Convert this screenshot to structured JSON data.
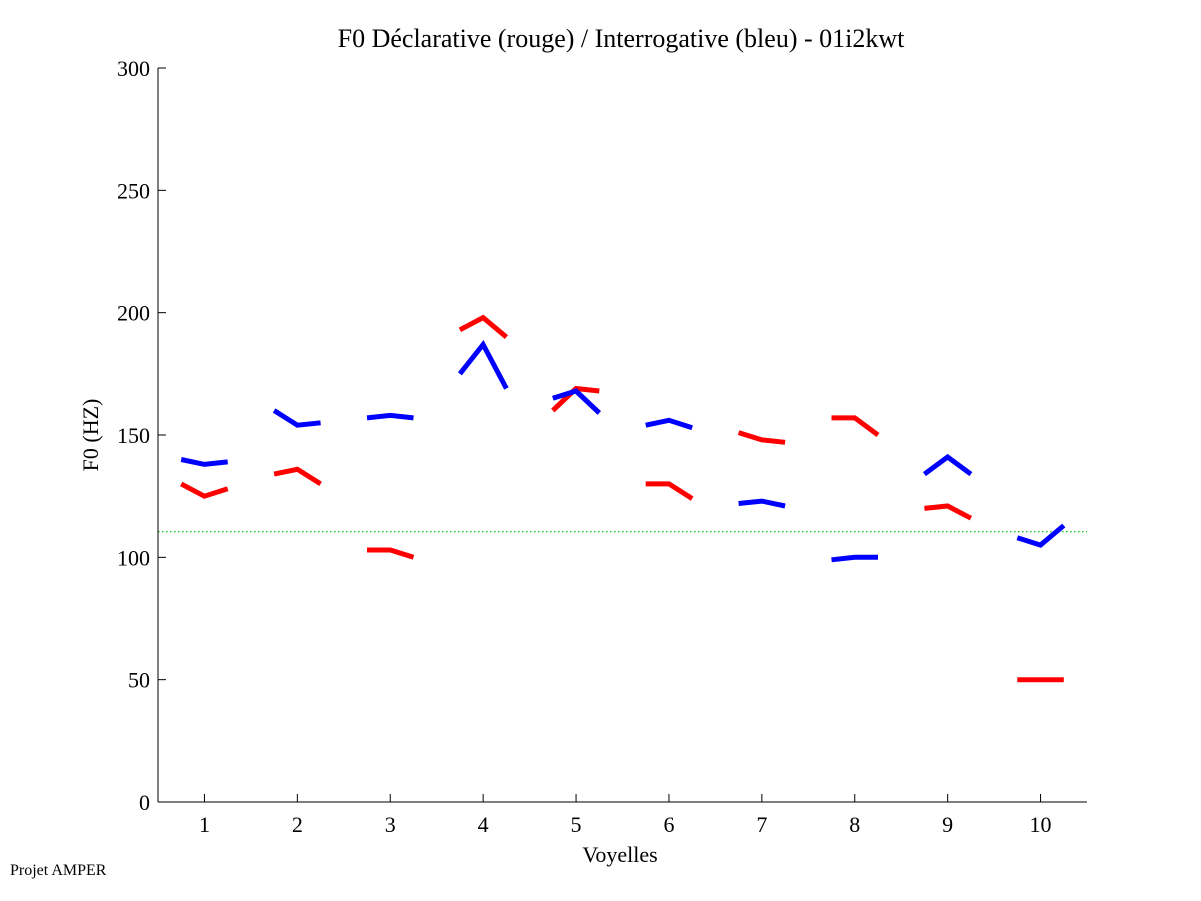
{
  "chart_data": {
    "type": "line",
    "title": "F0 Déclarative (rouge) / Interrogative (bleu) - 01i2kwt",
    "xlabel": "Voyelles",
    "ylabel": "F0 (HZ)",
    "xlim": [
      0.5,
      10.5
    ],
    "ylim": [
      0,
      300
    ],
    "x_ticks": [
      1,
      2,
      3,
      4,
      5,
      6,
      7,
      8,
      9,
      10
    ],
    "y_ticks": [
      0,
      50,
      100,
      150,
      200,
      250,
      300
    ],
    "reference_line": {
      "y": 110.5,
      "color": "#00cc00",
      "style": "dotted"
    },
    "series": [
      {
        "name": "Déclarative",
        "color": "#ff0000",
        "segments": [
          {
            "vowel": 1,
            "points": [
              [
                -0.25,
                130
              ],
              [
                0,
                125
              ],
              [
                0.25,
                128
              ]
            ]
          },
          {
            "vowel": 2,
            "points": [
              [
                -0.25,
                134
              ],
              [
                0,
                136
              ],
              [
                0.25,
                130
              ]
            ]
          },
          {
            "vowel": 3,
            "points": [
              [
                -0.25,
                103
              ],
              [
                0,
                103
              ],
              [
                0.25,
                100
              ]
            ]
          },
          {
            "vowel": 4,
            "points": [
              [
                -0.25,
                193
              ],
              [
                0,
                198
              ],
              [
                0.25,
                190
              ]
            ]
          },
          {
            "vowel": 5,
            "points": [
              [
                -0.25,
                160
              ],
              [
                0,
                169
              ],
              [
                0.25,
                168
              ]
            ]
          },
          {
            "vowel": 6,
            "points": [
              [
                -0.25,
                130
              ],
              [
                0,
                130
              ],
              [
                0.25,
                124
              ]
            ]
          },
          {
            "vowel": 7,
            "points": [
              [
                -0.25,
                151
              ],
              [
                0,
                148
              ],
              [
                0.25,
                147
              ]
            ]
          },
          {
            "vowel": 8,
            "points": [
              [
                -0.25,
                157
              ],
              [
                0,
                157
              ],
              [
                0.25,
                150
              ]
            ]
          },
          {
            "vowel": 9,
            "points": [
              [
                -0.25,
                120
              ],
              [
                0,
                121
              ],
              [
                0.25,
                116
              ]
            ]
          },
          {
            "vowel": 10,
            "points": [
              [
                -0.25,
                50
              ],
              [
                0,
                50
              ],
              [
                0.25,
                50
              ]
            ]
          }
        ]
      },
      {
        "name": "Interrogative",
        "color": "#0000ff",
        "segments": [
          {
            "vowel": 1,
            "points": [
              [
                -0.25,
                140
              ],
              [
                0,
                138
              ],
              [
                0.25,
                139
              ]
            ]
          },
          {
            "vowel": 2,
            "points": [
              [
                -0.25,
                160
              ],
              [
                0,
                154
              ],
              [
                0.25,
                155
              ]
            ]
          },
          {
            "vowel": 3,
            "points": [
              [
                -0.25,
                157
              ],
              [
                0,
                158
              ],
              [
                0.25,
                157
              ]
            ]
          },
          {
            "vowel": 4,
            "points": [
              [
                -0.25,
                175
              ],
              [
                0,
                187
              ],
              [
                0.25,
                169
              ]
            ]
          },
          {
            "vowel": 5,
            "points": [
              [
                -0.25,
                165
              ],
              [
                0,
                168
              ],
              [
                0.25,
                159
              ]
            ]
          },
          {
            "vowel": 6,
            "points": [
              [
                -0.25,
                154
              ],
              [
                0,
                156
              ],
              [
                0.25,
                153
              ]
            ]
          },
          {
            "vowel": 7,
            "points": [
              [
                -0.25,
                122
              ],
              [
                0,
                123
              ],
              [
                0.25,
                121
              ]
            ]
          },
          {
            "vowel": 8,
            "points": [
              [
                -0.25,
                99
              ],
              [
                0,
                100
              ],
              [
                0.25,
                100
              ]
            ]
          },
          {
            "vowel": 9,
            "points": [
              [
                -0.25,
                134
              ],
              [
                0,
                141
              ],
              [
                0.25,
                134
              ]
            ]
          },
          {
            "vowel": 10,
            "points": [
              [
                -0.25,
                108
              ],
              [
                0,
                105
              ],
              [
                0.25,
                113
              ]
            ]
          }
        ]
      }
    ]
  },
  "footer": {
    "text": "Projet AMPER"
  }
}
